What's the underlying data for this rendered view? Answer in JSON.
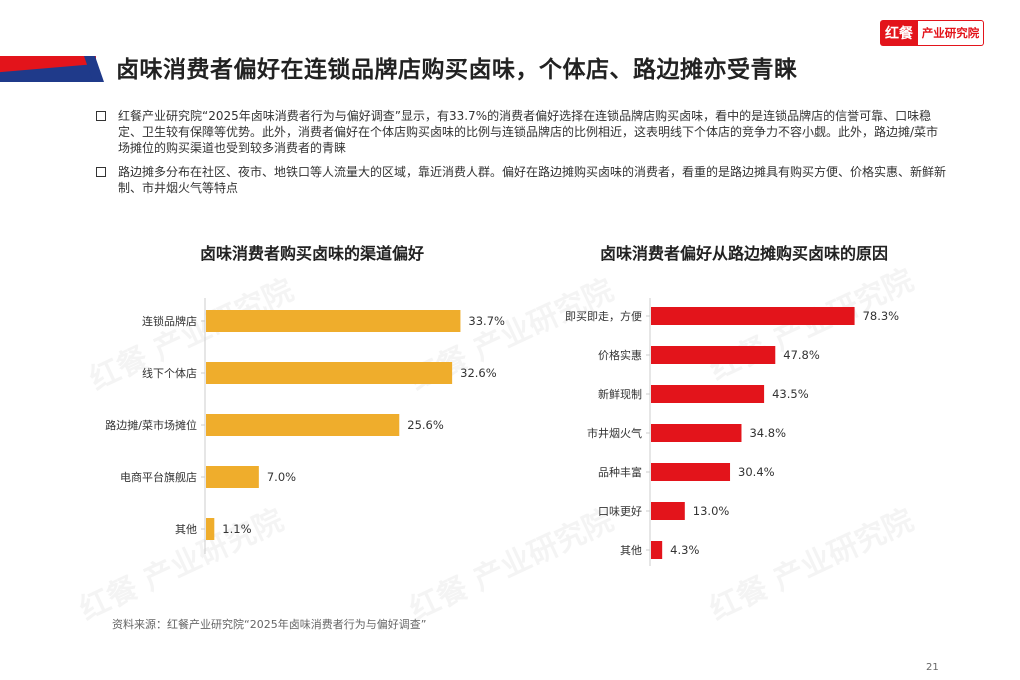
{
  "header": {
    "title": "卤味消费者偏好在连锁品牌店购买卤味，个体店、路边摊亦受青睐",
    "logo_mark": "红餐",
    "logo_name": "产业研究院"
  },
  "bullets": [
    "红餐产业研究院“2025年卤味消费者行为与偏好调查”显示，有33.7%的消费者偏好选择在连锁品牌店购买卤味，看中的是连锁品牌店的信誉可靠、口味稳定、卫生较有保障等优势。此外，消费者偏好在个体店购买卤味的比例与连锁品牌店的比例相近，这表明线下个体店的竞争力不容小觑。此外，路边摊/菜市场摊位的购买渠道也受到较多消费者的青睐",
    "路边摊多分布在社区、夜市、地铁口等人流量大的区域，靠近消费人群。偏好在路边摊购买卤味的消费者，看重的是路边摊具有购买方便、价格实惠、新鲜新制、市井烟火气等特点"
  ],
  "watermark": "红餐 产业研究院",
  "colors": {
    "brand_red": "#e3141b",
    "brand_blue": "#1f3a8a",
    "bar_left": "#efad2c",
    "bar_right": "#e3141b"
  },
  "chart_data": [
    {
      "type": "bar",
      "orientation": "horizontal",
      "title": "卤味消费者购买卤味的渠道偏好",
      "categories": [
        "连锁品牌店",
        "线下个体店",
        "路边摊/菜市场摊位",
        "电商平台旗舰店",
        "其他"
      ],
      "values": [
        33.7,
        32.6,
        25.6,
        7.0,
        1.1
      ],
      "labels": [
        "33.7%",
        "32.6%",
        "25.6%",
        "7.0%",
        "1.1%"
      ],
      "unit": "%",
      "grid": false
    },
    {
      "type": "bar",
      "orientation": "horizontal",
      "title": "卤味消费者偏好从路边摊购买卤味的原因",
      "categories": [
        "即买即走，方便",
        "价格实惠",
        "新鲜现制",
        "市井烟火气",
        "品种丰富",
        "口味更好",
        "其他"
      ],
      "values": [
        78.3,
        47.8,
        43.5,
        34.8,
        30.4,
        13.0,
        4.3
      ],
      "labels": [
        "78.3%",
        "47.8%",
        "43.5%",
        "34.8%",
        "30.4%",
        "13.0%",
        "4.3%"
      ],
      "unit": "%",
      "grid": false
    }
  ],
  "source": "资料来源：红餐产业研究院“2025年卤味消费者行为与偏好调查”",
  "page_number": "21"
}
